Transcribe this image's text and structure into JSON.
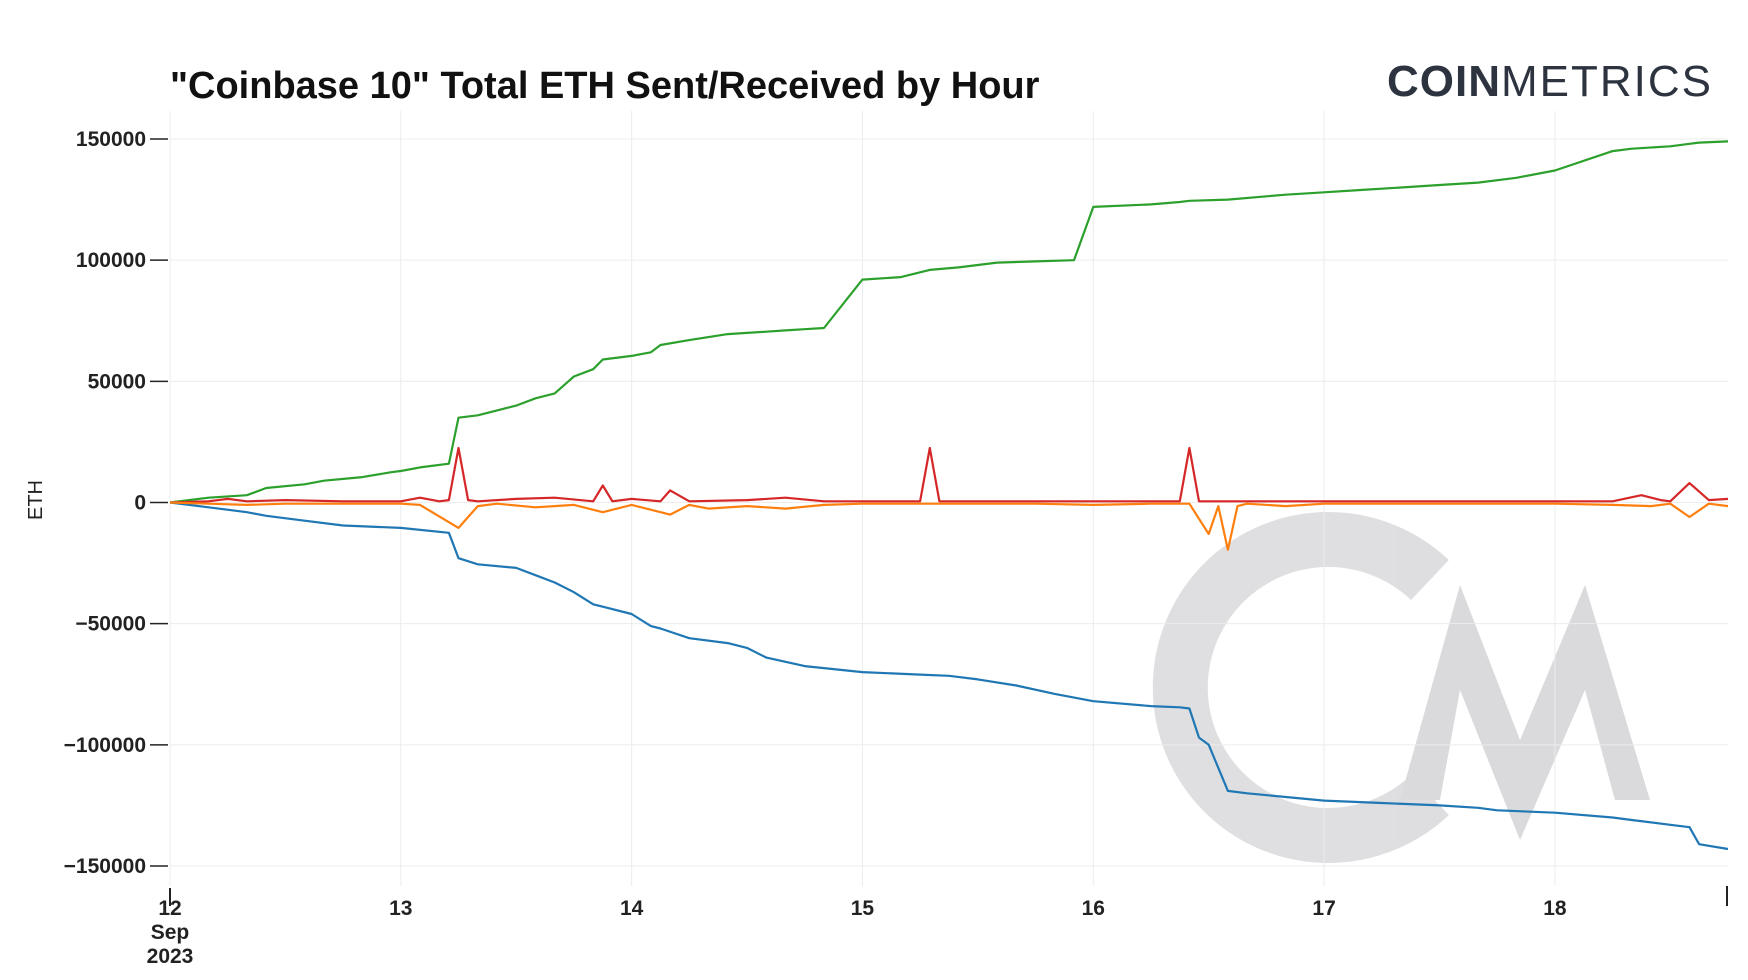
{
  "brand": {
    "bold": "COIN",
    "light": "METRICS"
  },
  "watermark": "CM",
  "colors": {
    "grid": "#ececec",
    "axis": "#222222",
    "received": "#2ca02c",
    "sent": "#1f77b4",
    "net_red": "#d62728",
    "net_orange": "#ff7f0e",
    "watermark": "#d9d9dc"
  },
  "chart_data": {
    "type": "line",
    "title": "\"Coinbase 10\" Total ETH Sent/Received by Hour",
    "ylabel": "ETH",
    "xlabel": "",
    "grid": true,
    "legend": "none",
    "xlim": [
      "2023-09-12 00:00",
      "2023-09-18 18:00"
    ],
    "ylim": [
      -150000,
      150000
    ],
    "y_ticks": [
      150000,
      100000,
      50000,
      0,
      -50000,
      -100000,
      -150000
    ],
    "y_tick_labels": [
      "150000",
      "100000",
      "50000",
      "0",
      "−50000",
      "−100000",
      "−150000"
    ],
    "x_ticks": [
      {
        "x": "2023-09-12",
        "lines": [
          "12",
          "Sep",
          "2023"
        ]
      },
      {
        "x": "2023-09-13",
        "lines": [
          "13"
        ]
      },
      {
        "x": "2023-09-14",
        "lines": [
          "14"
        ]
      },
      {
        "x": "2023-09-15",
        "lines": [
          "15"
        ]
      },
      {
        "x": "2023-09-16",
        "lines": [
          "16"
        ]
      },
      {
        "x": "2023-09-17",
        "lines": [
          "17"
        ]
      },
      {
        "x": "2023-09-18",
        "lines": [
          "18"
        ]
      }
    ],
    "series": [
      {
        "color": "#2ca02c",
        "x": [
          "2023-09-12 00:00",
          "2023-09-12 02:00",
          "2023-09-12 04:00",
          "2023-09-12 08:00",
          "2023-09-12 10:00",
          "2023-09-12 14:00",
          "2023-09-12 16:00",
          "2023-09-12 20:00",
          "2023-09-12 23:00",
          "2023-09-13 00:00",
          "2023-09-13 02:00",
          "2023-09-13 05:00",
          "2023-09-13 06:00",
          "2023-09-13 08:00",
          "2023-09-13 10:00",
          "2023-09-13 12:00",
          "2023-09-13 14:00",
          "2023-09-13 16:00",
          "2023-09-13 18:00",
          "2023-09-13 20:00",
          "2023-09-13 21:00",
          "2023-09-14 00:00",
          "2023-09-14 02:00",
          "2023-09-14 03:00",
          "2023-09-14 06:00",
          "2023-09-14 10:00",
          "2023-09-14 12:00",
          "2023-09-14 14:00",
          "2023-09-14 16:00",
          "2023-09-14 18:00",
          "2023-09-14 20:00",
          "2023-09-15 00:00",
          "2023-09-15 04:00",
          "2023-09-15 06:00",
          "2023-09-15 07:00",
          "2023-09-15 10:00",
          "2023-09-15 14:00",
          "2023-09-15 18:00",
          "2023-09-15 22:00",
          "2023-09-16 00:00",
          "2023-09-16 06:00",
          "2023-09-16 09:00",
          "2023-09-16 10:00",
          "2023-09-16 14:00",
          "2023-09-16 20:00",
          "2023-09-17 00:00",
          "2023-09-17 04:00",
          "2023-09-17 08:00",
          "2023-09-17 12:00",
          "2023-09-17 16:00",
          "2023-09-17 20:00",
          "2023-09-18 00:00",
          "2023-09-18 06:00",
          "2023-09-18 08:00",
          "2023-09-18 12:00",
          "2023-09-18 14:00",
          "2023-09-18 15:00",
          "2023-09-18 18:00"
        ],
        "values": [
          0,
          1000,
          2000,
          3000,
          6000,
          7500,
          9000,
          10500,
          12500,
          13000,
          14500,
          16000,
          35000,
          36000,
          38000,
          40000,
          43000,
          45000,
          52000,
          55000,
          59000,
          60500,
          62000,
          65000,
          67000,
          69500,
          70000,
          70500,
          71000,
          71500,
          72000,
          92000,
          93000,
          95000,
          96000,
          97000,
          99000,
          99500,
          100000,
          122000,
          123000,
          124000,
          124500,
          125000,
          127000,
          128000,
          129000,
          130000,
          131000,
          132000,
          134000,
          137000,
          145000,
          146000,
          147000,
          148000,
          148500,
          149000
        ]
      },
      {
        "color": "#1f77b4",
        "x": [
          "2023-09-12 00:00",
          "2023-09-12 04:00",
          "2023-09-12 08:00",
          "2023-09-12 10:00",
          "2023-09-12 14:00",
          "2023-09-12 18:00",
          "2023-09-13 00:00",
          "2023-09-13 05:00",
          "2023-09-13 06:00",
          "2023-09-13 08:00",
          "2023-09-13 12:00",
          "2023-09-13 14:00",
          "2023-09-13 16:00",
          "2023-09-13 18:00",
          "2023-09-13 20:00",
          "2023-09-13 21:00",
          "2023-09-14 00:00",
          "2023-09-14 02:00",
          "2023-09-14 03:00",
          "2023-09-14 06:00",
          "2023-09-14 10:00",
          "2023-09-14 12:00",
          "2023-09-14 14:00",
          "2023-09-14 18:00",
          "2023-09-15 00:00",
          "2023-09-15 06:00",
          "2023-09-15 09:00",
          "2023-09-15 12:00",
          "2023-09-15 16:00",
          "2023-09-15 20:00",
          "2023-09-16 00:00",
          "2023-09-16 06:00",
          "2023-09-16 09:00",
          "2023-09-16 10:00",
          "2023-09-16 11:00",
          "2023-09-16 12:00",
          "2023-09-16 14:00",
          "2023-09-16 16:00",
          "2023-09-17 00:00",
          "2023-09-17 06:00",
          "2023-09-17 12:00",
          "2023-09-17 16:00",
          "2023-09-17 18:00",
          "2023-09-18 00:00",
          "2023-09-18 06:00",
          "2023-09-18 08:00",
          "2023-09-18 12:00",
          "2023-09-18 14:00",
          "2023-09-18 15:00",
          "2023-09-18 18:00"
        ],
        "values": [
          0,
          -2000,
          -4000,
          -5500,
          -7500,
          -9500,
          -10500,
          -12500,
          -23000,
          -25500,
          -27000,
          -30000,
          -33000,
          -37000,
          -42000,
          -43000,
          -46000,
          -51000,
          -52000,
          -56000,
          -58000,
          -60000,
          -64000,
          -67500,
          -70000,
          -71000,
          -71500,
          -73000,
          -75500,
          -79000,
          -82000,
          -84000,
          -84500,
          -85000,
          -97000,
          -100000,
          -119000,
          -120000,
          -123000,
          -124000,
          -125000,
          -126000,
          -127000,
          -128000,
          -130000,
          -131000,
          -133000,
          -134000,
          -141000,
          -143000
        ]
      },
      {
        "color": "#d62728",
        "x": [
          "2023-09-12 00:00",
          "2023-09-12 04:00",
          "2023-09-12 06:00",
          "2023-09-12 08:00",
          "2023-09-12 12:00",
          "2023-09-12 18:00",
          "2023-09-13 00:00",
          "2023-09-13 02:00",
          "2023-09-13 04:00",
          "2023-09-13 05:00",
          "2023-09-13 06:00",
          "2023-09-13 07:00",
          "2023-09-13 08:00",
          "2023-09-13 12:00",
          "2023-09-13 16:00",
          "2023-09-13 20:00",
          "2023-09-13 21:00",
          "2023-09-13 22:00",
          "2023-09-14 00:00",
          "2023-09-14 03:00",
          "2023-09-14 04:00",
          "2023-09-14 06:00",
          "2023-09-14 12:00",
          "2023-09-14 16:00",
          "2023-09-14 20:00",
          "2023-09-15 00:00",
          "2023-09-15 06:00",
          "2023-09-15 07:00",
          "2023-09-15 08:00",
          "2023-09-15 12:00",
          "2023-09-15 18:00",
          "2023-09-16 00:00",
          "2023-09-16 06:00",
          "2023-09-16 09:00",
          "2023-09-16 10:00",
          "2023-09-16 11:00",
          "2023-09-16 16:00",
          "2023-09-17 00:00",
          "2023-09-17 06:00",
          "2023-09-17 12:00",
          "2023-09-17 18:00",
          "2023-09-18 00:00",
          "2023-09-18 03:00",
          "2023-09-18 06:00",
          "2023-09-18 09:00",
          "2023-09-18 11:00",
          "2023-09-18 12:00",
          "2023-09-18 14:00",
          "2023-09-18 16:00",
          "2023-09-18 18:00"
        ],
        "values": [
          0,
          500,
          1500,
          500,
          1000,
          500,
          500,
          2000,
          500,
          1000,
          22500,
          1000,
          500,
          1500,
          2000,
          500,
          7000,
          500,
          1500,
          500,
          5000,
          500,
          1000,
          2000,
          500,
          500,
          500,
          22500,
          500,
          500,
          500,
          500,
          500,
          500,
          22500,
          500,
          500,
          500,
          500,
          500,
          500,
          500,
          500,
          500,
          3000,
          1000,
          500,
          8000,
          1000,
          1500
        ]
      },
      {
        "color": "#ff7f0e",
        "x": [
          "2023-09-12 00:00",
          "2023-09-12 04:00",
          "2023-09-12 08:00",
          "2023-09-12 12:00",
          "2023-09-13 00:00",
          "2023-09-13 02:00",
          "2023-09-13 06:00",
          "2023-09-13 08:00",
          "2023-09-13 10:00",
          "2023-09-13 14:00",
          "2023-09-13 16:00",
          "2023-09-13 18:00",
          "2023-09-13 21:00",
          "2023-09-14 00:00",
          "2023-09-14 04:00",
          "2023-09-14 06:00",
          "2023-09-14 08:00",
          "2023-09-14 12:00",
          "2023-09-14 16:00",
          "2023-09-14 20:00",
          "2023-09-15 00:00",
          "2023-09-15 12:00",
          "2023-09-15 18:00",
          "2023-09-16 00:00",
          "2023-09-16 06:00",
          "2023-09-16 10:00",
          "2023-09-16 12:00",
          "2023-09-16 13:00",
          "2023-09-16 14:00",
          "2023-09-16 15:00",
          "2023-09-16 16:00",
          "2023-09-16 20:00",
          "2023-09-17 00:00",
          "2023-09-17 12:00",
          "2023-09-17 18:00",
          "2023-09-18 00:00",
          "2023-09-18 06:00",
          "2023-09-18 10:00",
          "2023-09-18 12:00",
          "2023-09-18 14:00",
          "2023-09-18 16:00",
          "2023-09-18 18:00"
        ],
        "values": [
          0,
          -500,
          -1000,
          -500,
          -500,
          -1000,
          -10500,
          -1500,
          -500,
          -2000,
          -1500,
          -1000,
          -4000,
          -1000,
          -5000,
          -1000,
          -2500,
          -1500,
          -2500,
          -1000,
          -500,
          -500,
          -500,
          -1000,
          -500,
          -500,
          -13000,
          -1500,
          -19500,
          -1500,
          -500,
          -1500,
          -500,
          -500,
          -500,
          -500,
          -1000,
          -1500,
          -500,
          -6000,
          -500,
          -1500
        ]
      }
    ]
  }
}
